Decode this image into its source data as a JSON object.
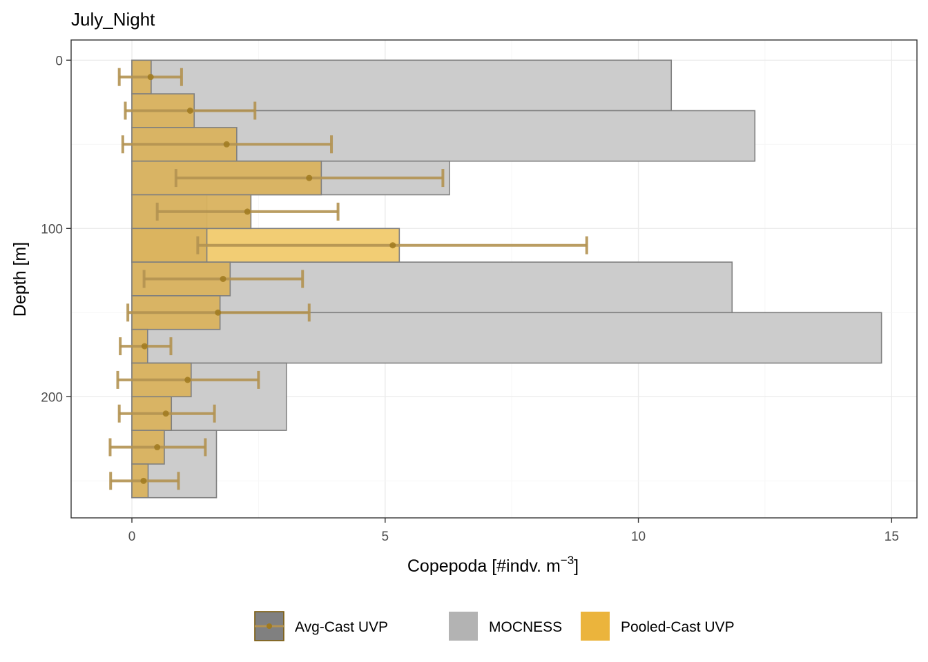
{
  "chart_data": {
    "type": "bar",
    "title": "July_Night",
    "xlabel": "Copepoda [#indv. m",
    "xlabel_sup": "−3",
    "xlabel_close": "]",
    "ylabel": "Depth [m]",
    "xlim": [
      -1.2,
      15.5
    ],
    "ylim": [
      -12,
      272
    ],
    "y_reversed": true,
    "x_ticks": [
      0,
      5,
      10,
      15
    ],
    "y_ticks": [
      0,
      100,
      200
    ],
    "grid": true,
    "legend_position": "bottom",
    "colors": {
      "mocness_fill": "#cccccc",
      "mocness_stroke": "#7f7f7f",
      "avg_fill": "#d9b25e",
      "pooled_fill": "#f2cd74",
      "error_bar": "#b39251",
      "point": "#a07a1f",
      "legend_avg_key": "#808080",
      "legend_avg_border": "#7b5a0a",
      "legend_mocness_key": "#b3b3b3",
      "legend_pooled_key": "#ebb43c"
    },
    "series": [
      {
        "name": "MOCNESS",
        "bins": [
          {
            "depth_top": 0,
            "depth_bottom": 30,
            "value": 10.65
          },
          {
            "depth_top": 30,
            "depth_bottom": 60,
            "value": 12.3
          },
          {
            "depth_top": 60,
            "depth_bottom": 80,
            "value": 6.27
          },
          {
            "depth_top": 80,
            "depth_bottom": 120,
            "value": 1.48
          },
          {
            "depth_top": 120,
            "depth_bottom": 150,
            "value": 11.85
          },
          {
            "depth_top": 150,
            "depth_bottom": 180,
            "value": 14.8
          },
          {
            "depth_top": 180,
            "depth_bottom": 220,
            "value": 3.05
          },
          {
            "depth_top": 220,
            "depth_bottom": 260,
            "value": 1.67
          }
        ]
      },
      {
        "name": "Pooled-Cast UVP",
        "bins": [
          {
            "depth_top": 100,
            "depth_bottom": 120,
            "value": 5.28
          }
        ]
      },
      {
        "name": "Avg-Cast UVP",
        "bins": [
          {
            "depth_top": 0,
            "depth_bottom": 20,
            "value": 0.38,
            "mean": 0.37,
            "err_low": -0.25,
            "err_high": 0.98
          },
          {
            "depth_top": 20,
            "depth_bottom": 40,
            "value": 1.23,
            "mean": 1.15,
            "err_low": -0.13,
            "err_high": 2.43
          },
          {
            "depth_top": 40,
            "depth_bottom": 60,
            "value": 2.07,
            "mean": 1.87,
            "err_low": -0.18,
            "err_high": 3.94
          },
          {
            "depth_top": 60,
            "depth_bottom": 80,
            "value": 3.74,
            "mean": 3.5,
            "err_low": 0.87,
            "err_high": 6.14
          },
          {
            "depth_top": 80,
            "depth_bottom": 100,
            "value": 2.35,
            "mean": 2.28,
            "err_low": 0.5,
            "err_high": 4.07
          },
          {
            "depth_top": 100,
            "depth_bottom": 120,
            "value": 1.48,
            "mean": 5.15,
            "err_low": 1.3,
            "err_high": 8.98
          },
          {
            "depth_top": 120,
            "depth_bottom": 140,
            "value": 1.94,
            "mean": 1.8,
            "err_low": 0.24,
            "err_high": 3.37
          },
          {
            "depth_top": 140,
            "depth_bottom": 160,
            "value": 1.74,
            "mean": 1.7,
            "err_low": -0.08,
            "err_high": 3.5
          },
          {
            "depth_top": 160,
            "depth_bottom": 180,
            "value": 0.31,
            "mean": 0.25,
            "err_low": -0.23,
            "err_high": 0.77
          },
          {
            "depth_top": 180,
            "depth_bottom": 200,
            "value": 1.17,
            "mean": 1.1,
            "err_low": -0.28,
            "err_high": 2.5
          },
          {
            "depth_top": 200,
            "depth_bottom": 220,
            "value": 0.78,
            "mean": 0.67,
            "err_low": -0.25,
            "err_high": 1.63
          },
          {
            "depth_top": 220,
            "depth_bottom": 240,
            "value": 0.64,
            "mean": 0.5,
            "err_low": -0.43,
            "err_high": 1.45
          },
          {
            "depth_top": 240,
            "depth_bottom": 260,
            "value": 0.32,
            "mean": 0.23,
            "err_low": -0.42,
            "err_high": 0.92
          }
        ]
      }
    ],
    "legend": [
      "Avg-Cast UVP",
      "MOCNESS",
      "Pooled-Cast UVP"
    ]
  }
}
